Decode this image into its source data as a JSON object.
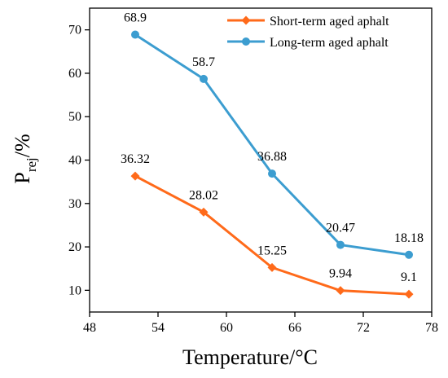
{
  "chart_data": {
    "type": "line",
    "xlabel": "Temperature/°C",
    "ylabel": {
      "main": "P",
      "sub": "rej",
      "suffix": "/%"
    },
    "xlim": [
      48,
      78
    ],
    "ylim": [
      5,
      75
    ],
    "xticks": [
      48,
      54,
      60,
      66,
      72,
      78
    ],
    "yticks": [
      10,
      20,
      30,
      40,
      50,
      60,
      70
    ],
    "x": [
      52,
      58,
      64,
      70,
      76
    ],
    "series": [
      {
        "name": "Short-term aged aphalt",
        "color": "#ff6a1a",
        "marker": "diamond",
        "values": [
          36.32,
          28.02,
          15.25,
          9.94,
          9.1
        ],
        "labels": [
          "36.32",
          "28.02",
          "15.25",
          "9.94",
          "9.1"
        ]
      },
      {
        "name": "Long-term aged aphalt",
        "color": "#3c9dd0",
        "marker": "circle",
        "values": [
          68.9,
          58.7,
          36.88,
          20.47,
          18.18
        ],
        "labels": [
          "68.9",
          "58.7",
          "36.88",
          "20.47",
          "18.18"
        ]
      }
    ],
    "legend_position": "top-right",
    "grid": false
  }
}
